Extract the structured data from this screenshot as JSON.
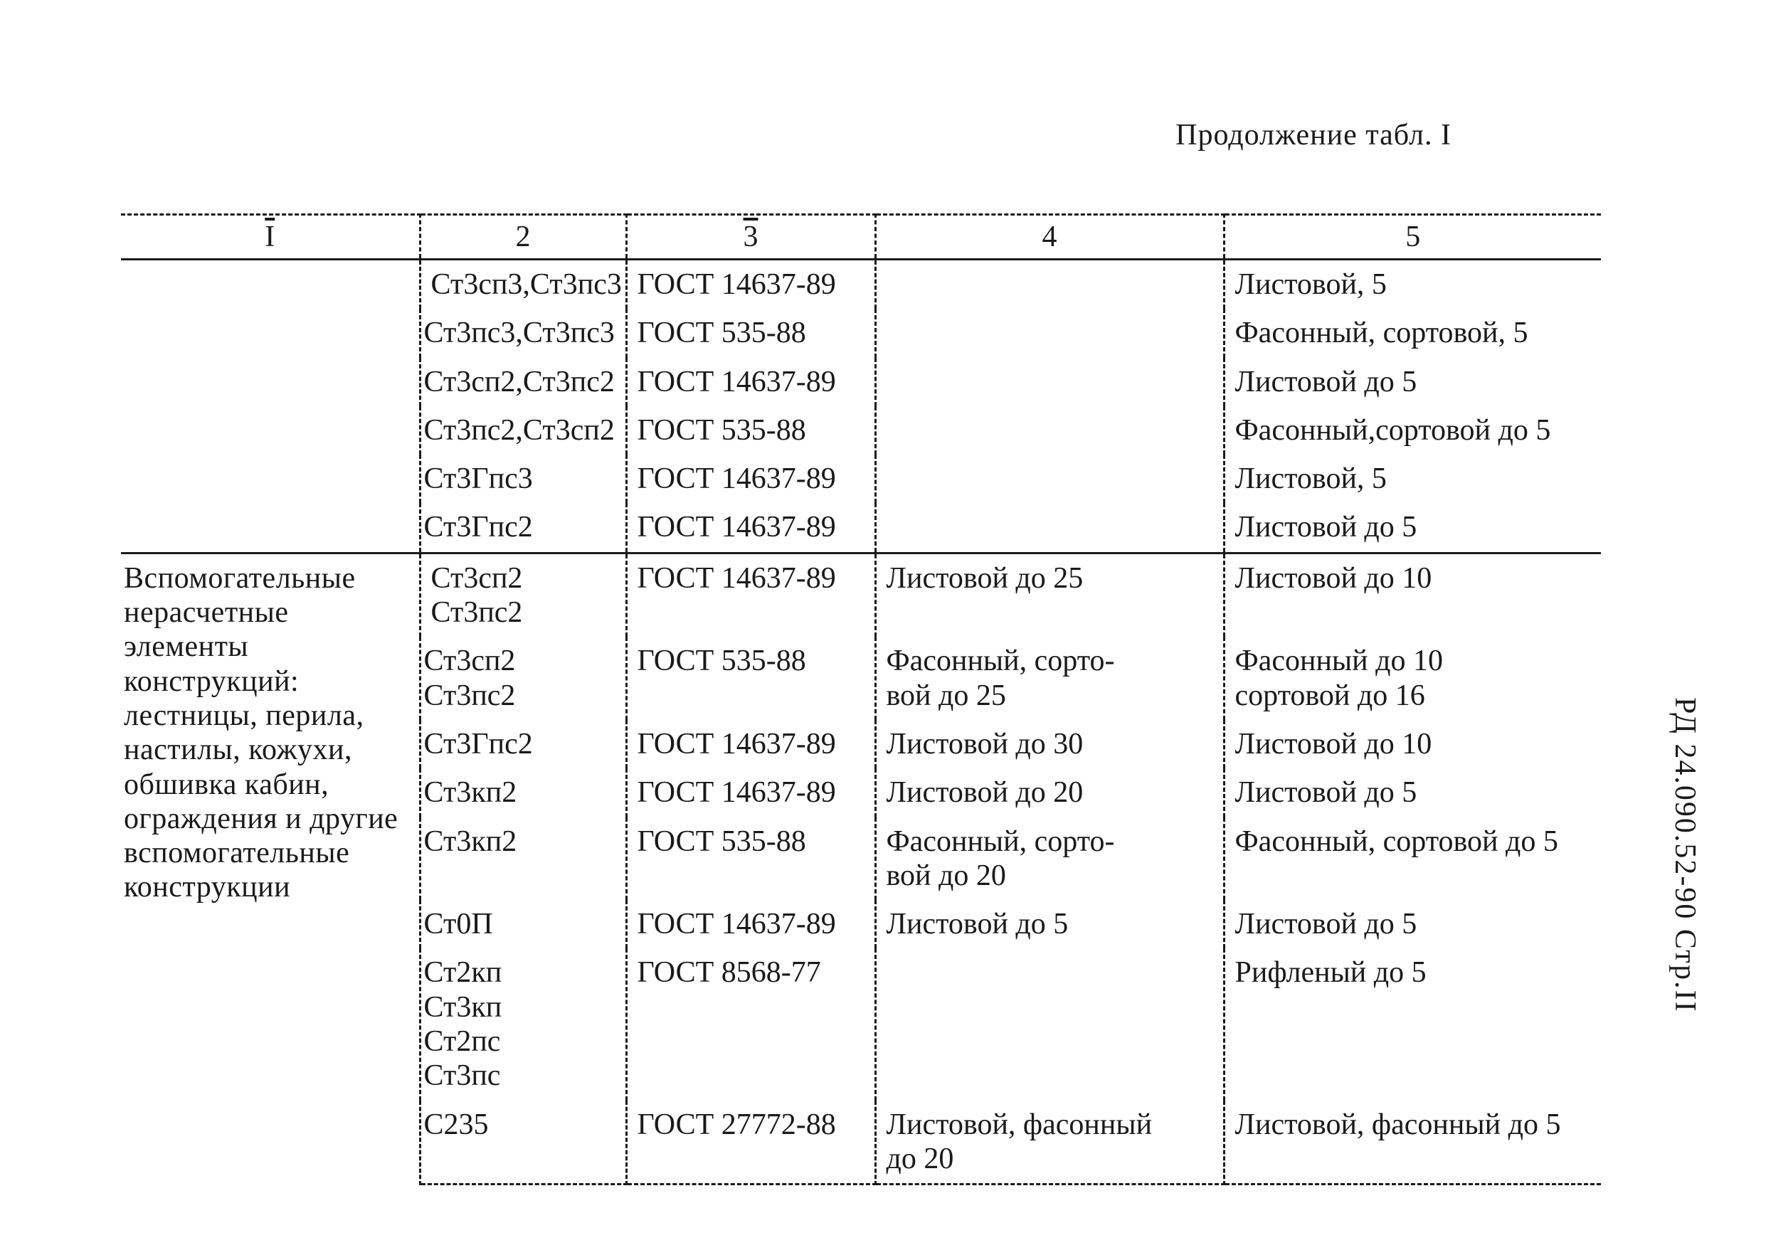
{
  "caption": "Продолжение табл. I",
  "sidenote": "РД 24.090.52-90   Стр.II",
  "headers": {
    "c1": "I",
    "c2": "2",
    "c3": "3",
    "c4": "4",
    "c5": "5"
  },
  "section1_rows": [
    {
      "c2": "Ст3сп3,Ст3пс3",
      "c3": "ГОСТ 14637-89",
      "c4": "",
      "c5": "Листовой, 5"
    },
    {
      "c2": "Ст3пс3,Ст3пс3",
      "c3": "ГОСТ 535-88",
      "c4": "",
      "c5": "Фасонный, сортовой, 5"
    },
    {
      "c2": "Ст3сп2,Ст3пс2",
      "c3": "ГОСТ 14637-89",
      "c4": "",
      "c5": "Листовой до 5"
    },
    {
      "c2": "Ст3пс2,Ст3сп2",
      "c3": "ГОСТ 535-88",
      "c4": "",
      "c5": "Фасонный,сортовой до 5"
    },
    {
      "c2": "Ст3Гпс3",
      "c3": "ГОСТ 14637-89",
      "c4": "",
      "c5": "Листовой, 5"
    },
    {
      "c2": "Ст3Гпс2",
      "c3": "ГОСТ 14637-89",
      "c4": "",
      "c5": "Листовой до 5"
    }
  ],
  "section2_col1": "Вспомогательные нерасчетные элементы конструкций: лестницы, перила, настилы, кожухи, обшивка кабин, ограждения и другие вспомогательные конструкции",
  "section2_rows": [
    {
      "c2": "Ст3сп2\nСт3пс2",
      "c3": "ГОСТ 14637-89",
      "c4": "Листовой до 25",
      "c5": "Листовой до 10"
    },
    {
      "c2": "Ст3сп2\nСт3пс2",
      "c3": "ГОСТ 535-88",
      "c4": "Фасонный, сорто-\nвой до 25",
      "c5": "Фасонный до 10\nсортовой до 16"
    },
    {
      "c2": "Ст3Гпс2",
      "c3": "ГОСТ 14637-89",
      "c4": "Листовой до 30",
      "c5": "Листовой до 10"
    },
    {
      "c2": "Ст3кп2",
      "c3": "ГОСТ 14637-89",
      "c4": "Листовой до 20",
      "c5": "Листовой до 5"
    },
    {
      "c2": "Ст3кп2",
      "c3": "ГОСТ 535-88",
      "c4": "Фасонный, сорто-\nвой до 20",
      "c5": "Фасонный, сортовой до 5"
    },
    {
      "c2": "Ст0П",
      "c3": "ГОСТ 14637-89",
      "c4": "Листовой до 5",
      "c5": "Листовой до 5"
    },
    {
      "c2": "Ст2кп\nСт3кп\nСт2пс\nСт3пс",
      "c3": "ГОСТ 8568-77",
      "c4": "",
      "c5": "Рифленый до 5"
    },
    {
      "c2": "С235",
      "c3": "ГОСТ 27772-88",
      "c4": "Листовой, фасонный\nдо 20",
      "c5": "Листовой, фасонный до 5"
    }
  ]
}
